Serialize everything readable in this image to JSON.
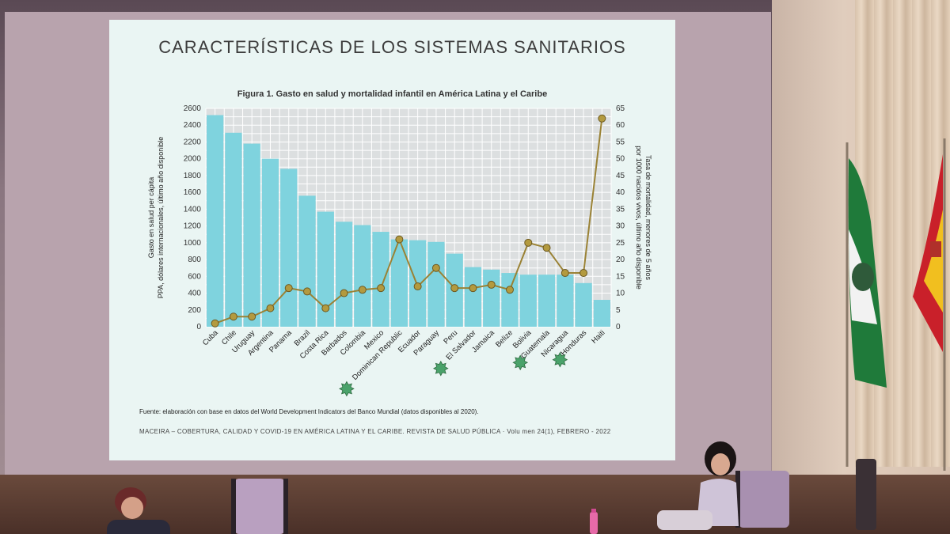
{
  "slide": {
    "title": "CARACTERÍSTICAS DE LOS SISTEMAS SANITARIOS",
    "figure_title": "Figura 1. Gasto en salud y mortalidad infantil en América Latina y el Caribe",
    "source": "Fuente: elaboración con base en datos del World Development Indicators del Banco Mundial (datos disponibles al 2020).",
    "footer": "MACEIRA – COBERTURA, CALIDAD Y COVID-19 EN AMÉRICA LATINA Y EL CARIBE. REVISTA DE SALUD PÚBLICA · Volu men 24(1), FEBRERO - 2022"
  },
  "chart_data": {
    "type": "bar",
    "categories": [
      "Cuba",
      "Chile",
      "Uruguay",
      "Argentina",
      "Panama",
      "Brazil",
      "Costa Rica",
      "Barbados",
      "Colombia",
      "Mexico",
      "Dominican Republic",
      "Ecuador",
      "Paraguay",
      "Peru",
      "El Salvador",
      "Jamaica",
      "Belize",
      "Bolivia",
      "Guatemala",
      "Nicaragua",
      "Honduras",
      "Haiti"
    ],
    "series": [
      {
        "name": "",
        "kind": "bar",
        "axis": "left",
        "values": [
          2520,
          2310,
          2180,
          2000,
          1880,
          1560,
          1370,
          1250,
          1210,
          1130,
          1040,
          1030,
          1010,
          870,
          710,
          680,
          640,
          620,
          620,
          620,
          520,
          320
        ]
      },
      {
        "name": "",
        "kind": "line",
        "axis": "right",
        "values": [
          1,
          3,
          3,
          5.5,
          11.5,
          10.5,
          5.5,
          10,
          11,
          11.5,
          26,
          12,
          17.5,
          11.5,
          11.5,
          12.5,
          11,
          25,
          23.5,
          16,
          16,
          62
        ]
      }
    ],
    "highlighted": [
      "Dominican Republic",
      "El Salvador",
      "Guatemala",
      "Honduras"
    ],
    "ylabel": "Gasto en salud per cápita PPA, dólares internacionales, último año disponible",
    "y2label": "Tasa de mortalidad, menores de 5 años por 1000 nacidos vivos, último año disponible",
    "ylim": [
      0,
      2600
    ],
    "y2lim": [
      0,
      65
    ],
    "yticks": [
      0,
      200,
      400,
      600,
      800,
      1000,
      1200,
      1400,
      1600,
      1800,
      2000,
      2200,
      2400,
      2600
    ],
    "y2ticks": [
      0,
      5,
      10,
      15,
      20,
      25,
      30,
      35,
      40,
      45,
      50,
      55,
      60,
      65
    ],
    "grid": true,
    "colors": {
      "bar": "#7fd3de",
      "line": "#9a8235",
      "marker": "#b39a3f",
      "highlight": "#4aa26a"
    }
  }
}
